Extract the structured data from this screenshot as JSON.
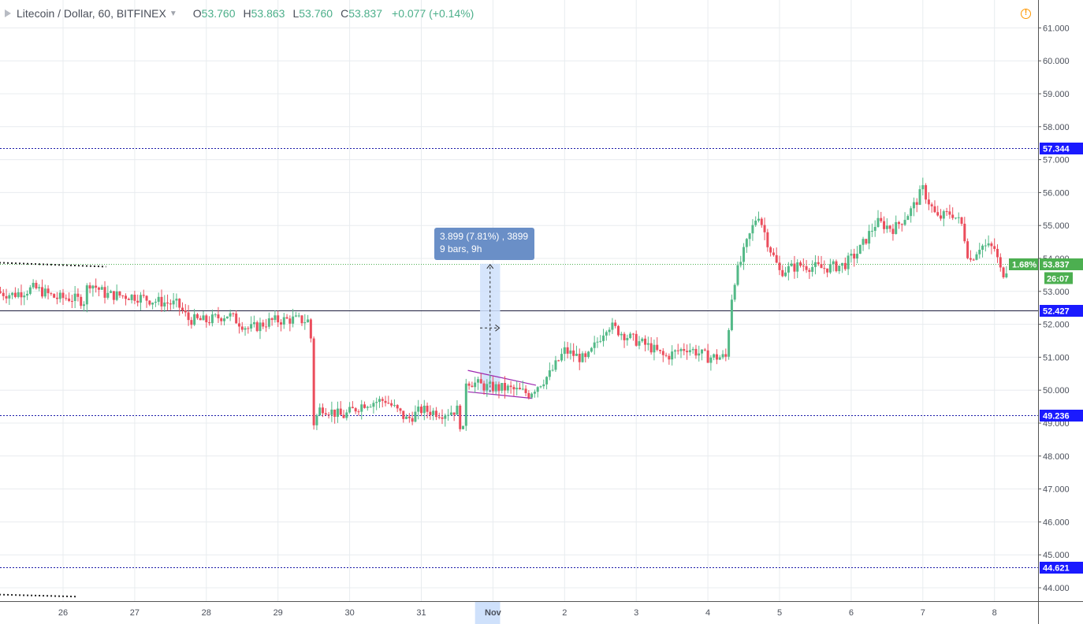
{
  "header": {
    "symbol_title": "Litecoin / Dollar, 60, BITFINEX",
    "open_label": "O",
    "open_value": "53.760",
    "high_label": "H",
    "high_value": "53.863",
    "low_label": "L",
    "low_value": "53.760",
    "close_label": "C",
    "close_value": "53.837",
    "change": "+0.077 (+0.14%)"
  },
  "measure_tooltip": {
    "line1": "3.899 (7.81%) , 3899",
    "line2": "9 bars, 9h"
  },
  "colors": {
    "up": "#53b987",
    "down": "#eb4d5c",
    "level_line": "#1a1aa8",
    "support_line": "#1c1c3c",
    "price_line": "#4caf50",
    "axis_badge": "#1a1aff",
    "channel": "#9c27b0",
    "measure_fill": "#cfe1fb",
    "measure_line": "#2b2b2b",
    "tooltip_bg": "#6a8fc7",
    "grid": "#e8ecef"
  },
  "chart_data": {
    "type": "candlestick",
    "title": "Litecoin / Dollar, 60, BITFINEX",
    "timeframe": "60",
    "y_axis": {
      "ticks": [
        "44.000",
        "45.000",
        "46.000",
        "47.000",
        "48.000",
        "49.000",
        "50.000",
        "51.000",
        "52.000",
        "53.000",
        "54.000",
        "55.000",
        "56.000",
        "57.000",
        "58.000",
        "59.000",
        "60.000",
        "61.000"
      ],
      "range": [
        43.0,
        61.4
      ]
    },
    "x_axis": {
      "ticks": [
        "26",
        "27",
        "28",
        "29",
        "30",
        "31",
        "Nov",
        "2",
        "3",
        "4",
        "5",
        "6",
        "7",
        "8"
      ],
      "highlighted": "Nov"
    },
    "horizontal_levels": [
      {
        "value": 57.344,
        "label": "57.344",
        "style": "dotted"
      },
      {
        "value": 52.427,
        "label": "52.427",
        "style": "solid"
      },
      {
        "value": 49.236,
        "label": "49.236",
        "style": "dotted"
      },
      {
        "value": 44.621,
        "label": "44.621",
        "style": "dotted"
      }
    ],
    "last_price": {
      "value": 53.837,
      "label": "53.837",
      "percent": "1.68%",
      "countdown": "26:07"
    },
    "measure": {
      "from": 49.94,
      "to": 53.837,
      "change": "3.899 (7.81%) , 3899",
      "bars": "9 bars, 9h"
    },
    "trendlines": [
      {
        "style": "dotted",
        "from": {
          "x": "25.0",
          "y": 53.95
        },
        "to": {
          "x": "26.6",
          "y": 53.75
        }
      },
      {
        "style": "dotted",
        "from": {
          "x": "25.0",
          "y": 43.85
        },
        "to": {
          "x": "26.2",
          "y": 43.73
        }
      }
    ],
    "channel": {
      "upper": [
        [
          31.65,
          50.6
        ],
        [
          32.6,
          50.15
        ]
      ],
      "lower": [
        [
          31.65,
          49.95
        ],
        [
          32.55,
          49.75
        ]
      ]
    },
    "price_path": [
      {
        "day": 25.0,
        "close": 53.0
      },
      {
        "day": 25.3,
        "close": 52.9
      },
      {
        "day": 25.6,
        "close": 53.1
      },
      {
        "day": 25.9,
        "close": 52.8
      },
      {
        "day": 26.1,
        "close": 52.8
      },
      {
        "day": 26.3,
        "close": 52.7
      },
      {
        "day": 26.35,
        "close": 53.3
      },
      {
        "day": 26.6,
        "close": 52.9
      },
      {
        "day": 27.0,
        "close": 52.85
      },
      {
        "day": 27.3,
        "close": 52.7
      },
      {
        "day": 27.6,
        "close": 52.6
      },
      {
        "day": 27.75,
        "close": 52.15
      },
      {
        "day": 28.0,
        "close": 52.1
      },
      {
        "day": 28.3,
        "close": 52.3
      },
      {
        "day": 28.6,
        "close": 51.85
      },
      {
        "day": 28.9,
        "close": 52.1
      },
      {
        "day": 29.2,
        "close": 52.15
      },
      {
        "day": 29.45,
        "close": 52.1
      },
      {
        "day": 29.5,
        "close": 49.0
      },
      {
        "day": 29.6,
        "close": 49.5
      },
      {
        "day": 29.9,
        "close": 49.2
      },
      {
        "day": 30.2,
        "close": 49.6
      },
      {
        "day": 30.5,
        "close": 49.7
      },
      {
        "day": 30.8,
        "close": 49.1
      },
      {
        "day": 31.0,
        "close": 49.4
      },
      {
        "day": 31.3,
        "close": 49.3
      },
      {
        "day": 31.5,
        "close": 49.4
      },
      {
        "day": 31.58,
        "close": 48.6
      },
      {
        "day": 31.62,
        "close": 50.3
      },
      {
        "day": 31.9,
        "close": 50.1
      },
      {
        "day": 32.2,
        "close": 50.05
      },
      {
        "day": 32.5,
        "close": 49.9
      },
      {
        "day": 32.8,
        "close": 50.5
      },
      {
        "day": 33.0,
        "close": 51.2
      },
      {
        "day": 33.3,
        "close": 50.9
      },
      {
        "day": 33.6,
        "close": 52.0
      },
      {
        "day": 33.9,
        "close": 51.6
      },
      {
        "day": 34.2,
        "close": 51.3
      },
      {
        "day": 34.4,
        "close": 51.0
      },
      {
        "day": 34.7,
        "close": 51.3
      },
      {
        "day": 35.0,
        "close": 51.0
      },
      {
        "day": 35.25,
        "close": 51.0
      },
      {
        "day": 35.35,
        "close": 53.2
      },
      {
        "day": 35.55,
        "close": 54.5
      },
      {
        "day": 35.7,
        "close": 55.4
      },
      {
        "day": 35.85,
        "close": 54.4
      },
      {
        "day": 36.0,
        "close": 53.6
      },
      {
        "day": 36.3,
        "close": 53.8
      },
      {
        "day": 36.6,
        "close": 53.7
      },
      {
        "day": 36.9,
        "close": 53.8
      },
      {
        "day": 37.1,
        "close": 54.2
      },
      {
        "day": 37.35,
        "close": 55.1
      },
      {
        "day": 37.6,
        "close": 54.9
      },
      {
        "day": 37.85,
        "close": 55.5
      },
      {
        "day": 38.0,
        "close": 56.1
      },
      {
        "day": 38.2,
        "close": 55.2
      },
      {
        "day": 38.4,
        "close": 55.4
      },
      {
        "day": 38.55,
        "close": 55.0
      },
      {
        "day": 38.65,
        "close": 53.9
      },
      {
        "day": 38.8,
        "close": 54.4
      },
      {
        "day": 39.0,
        "close": 54.3
      },
      {
        "day": 39.1,
        "close": 53.5
      },
      {
        "day": 39.2,
        "close": 53.8
      }
    ]
  }
}
